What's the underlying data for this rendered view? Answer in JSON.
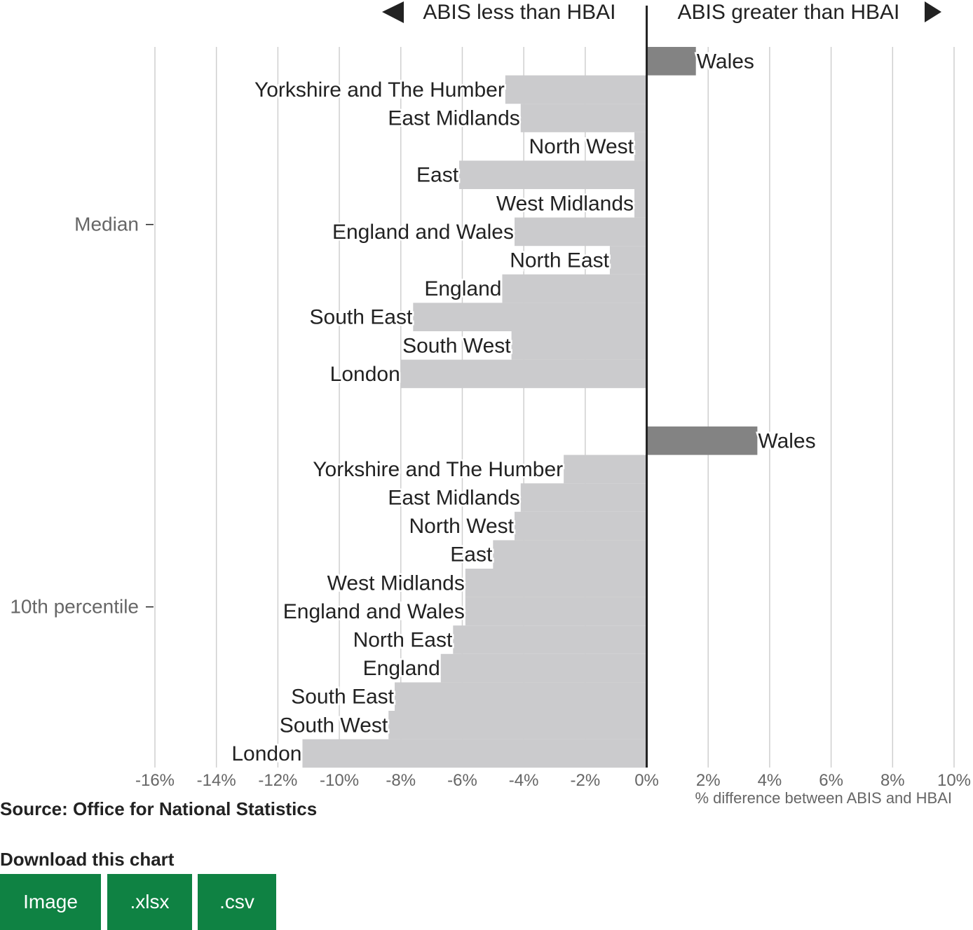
{
  "chart_data": {
    "type": "bar",
    "orientation": "horizontal",
    "direction_labels": {
      "left": "ABIS less than HBAI",
      "right": "ABIS greater than HBAI"
    },
    "xlabel": "% difference between ABIS and HBAI",
    "xlim": [
      -16,
      10
    ],
    "xticks": [
      -16,
      -14,
      -12,
      -10,
      -8,
      -6,
      -4,
      -2,
      0,
      2,
      4,
      6,
      8,
      10
    ],
    "tick_suffix": "%",
    "grid": true,
    "groups": [
      {
        "name": "Median",
        "bars": [
          {
            "label": "Wales",
            "value": 1.6
          },
          {
            "label": "Yorkshire and The Humber",
            "value": -4.6
          },
          {
            "label": "East Midlands",
            "value": -4.1
          },
          {
            "label": "North West",
            "value": -0.4
          },
          {
            "label": "East",
            "value": -6.1
          },
          {
            "label": "West Midlands",
            "value": -0.4
          },
          {
            "label": "England and Wales",
            "value": -4.3
          },
          {
            "label": "North East",
            "value": -1.2
          },
          {
            "label": "England",
            "value": -4.7
          },
          {
            "label": "South East",
            "value": -7.6
          },
          {
            "label": "South West",
            "value": -4.4
          },
          {
            "label": "London",
            "value": -8.0
          }
        ]
      },
      {
        "name": "10th percentile",
        "bars": [
          {
            "label": "Wales",
            "value": 3.6
          },
          {
            "label": "Yorkshire and The Humber",
            "value": -2.7
          },
          {
            "label": "East Midlands",
            "value": -4.1
          },
          {
            "label": "North West",
            "value": -4.3
          },
          {
            "label": "East",
            "value": -5.0
          },
          {
            "label": "West Midlands",
            "value": -5.9
          },
          {
            "label": "England and Wales",
            "value": -5.9
          },
          {
            "label": "North East",
            "value": -6.3
          },
          {
            "label": "England",
            "value": -6.7
          },
          {
            "label": "South East",
            "value": -8.2
          },
          {
            "label": "South West",
            "value": -8.4
          },
          {
            "label": "London",
            "value": -11.2
          }
        ]
      }
    ],
    "colors": {
      "positive": "#838383",
      "negative": "#cbcbcd",
      "grid": "#cfcfcf",
      "zero_line": "#222222"
    }
  },
  "source": "Source: Office for National Statistics",
  "download": {
    "title": "Download this chart",
    "buttons": [
      ".xlsx",
      ".csv"
    ],
    "image_label": "Image"
  }
}
